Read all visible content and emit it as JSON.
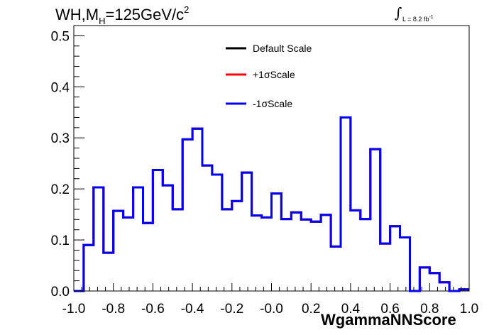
{
  "chart_data": {
    "type": "line",
    "title_text": {
      "prefix": "WH,M",
      "sub": "H",
      "middle": "=125GeV/c",
      "sup": "2"
    },
    "luminosity": {
      "integral_symbol": "∫",
      "text": "L = 8.2 fb",
      "sup": "-1"
    },
    "xlabel": "WgammaNNScore",
    "xlim": [
      -1.0,
      1.0
    ],
    "ylim": [
      0.0,
      0.52
    ],
    "x_ticks": [
      "-1.0",
      "-0.8",
      "-0.6",
      "-0.4",
      "-0.2",
      "-0.0",
      "0.2",
      "0.4",
      "0.6",
      "0.8",
      "1.0"
    ],
    "y_ticks": [
      "0.0",
      "0.1",
      "0.2",
      "0.3",
      "0.4",
      "0.5"
    ],
    "bin_edges": [
      -1.0,
      -0.95,
      -0.9,
      -0.85,
      -0.8,
      -0.75,
      -0.7,
      -0.65,
      -0.6,
      -0.55,
      -0.5,
      -0.45,
      -0.4,
      -0.35,
      -0.3,
      -0.25,
      -0.2,
      -0.15,
      -0.1,
      -0.05,
      0.0,
      0.05,
      0.1,
      0.15,
      0.2,
      0.25,
      0.3,
      0.35,
      0.4,
      0.45,
      0.5,
      0.55,
      0.6,
      0.65,
      0.7,
      0.75,
      0.8,
      0.85,
      0.9,
      0.95,
      1.0
    ],
    "series": [
      {
        "name": "Default Scale",
        "color": "#000000",
        "values": [
          0.0,
          0.09,
          0.203,
          0.075,
          0.157,
          0.144,
          0.203,
          0.133,
          0.237,
          0.207,
          0.16,
          0.297,
          0.318,
          0.246,
          0.228,
          0.16,
          0.176,
          0.232,
          0.148,
          0.144,
          0.191,
          0.141,
          0.154,
          0.14,
          0.136,
          0.149,
          0.087,
          0.34,
          0.158,
          0.141,
          0.278,
          0.093,
          0.127,
          0.105,
          0.0,
          0.046,
          0.035,
          0.017,
          0.0,
          0.003
        ]
      },
      {
        "name": "+1σScale",
        "color": "#ff0000",
        "values": [
          0.0,
          0.09,
          0.203,
          0.075,
          0.157,
          0.144,
          0.203,
          0.133,
          0.237,
          0.207,
          0.16,
          0.297,
          0.318,
          0.246,
          0.228,
          0.16,
          0.176,
          0.232,
          0.148,
          0.144,
          0.191,
          0.141,
          0.154,
          0.14,
          0.136,
          0.149,
          0.087,
          0.34,
          0.158,
          0.141,
          0.278,
          0.093,
          0.127,
          0.105,
          0.0,
          0.046,
          0.035,
          0.017,
          0.0,
          0.003
        ]
      },
      {
        "name": "-1σScale",
        "color": "#0000ff",
        "values": [
          0.0,
          0.09,
          0.203,
          0.075,
          0.157,
          0.144,
          0.203,
          0.133,
          0.237,
          0.207,
          0.16,
          0.297,
          0.318,
          0.246,
          0.228,
          0.16,
          0.176,
          0.232,
          0.148,
          0.144,
          0.191,
          0.141,
          0.154,
          0.14,
          0.136,
          0.149,
          0.087,
          0.34,
          0.158,
          0.141,
          0.278,
          0.093,
          0.127,
          0.105,
          0.0,
          0.046,
          0.035,
          0.017,
          0.0,
          0.003
        ]
      }
    ],
    "legend_position": "top-center",
    "grid": false
  }
}
